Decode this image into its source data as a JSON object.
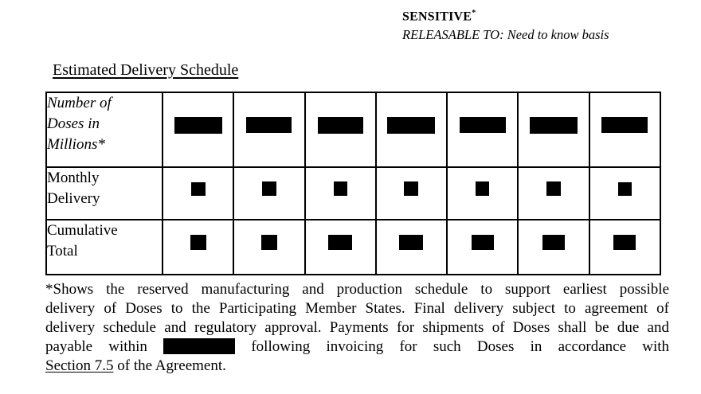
{
  "header": {
    "classification": "SENSITIVE",
    "classification_superscript": "*",
    "releasable_line": "RELEASABLE TO: Need to know basis"
  },
  "title": "Estimated Delivery Schedule",
  "table": {
    "columns": 7,
    "rows": [
      {
        "label": "Number of\nDoses in\nMillions*",
        "italic": true,
        "redaction_bars": [
          [
            60,
            21
          ],
          [
            57,
            20
          ],
          [
            57,
            21
          ],
          [
            60,
            21
          ],
          [
            58,
            20
          ],
          [
            60,
            21
          ],
          [
            58,
            20
          ]
        ]
      },
      {
        "label": "Monthly\nDelivery",
        "italic": false,
        "redaction_bars": [
          [
            18,
            17
          ],
          [
            18,
            18
          ],
          [
            17,
            18
          ],
          [
            18,
            18
          ],
          [
            17,
            18
          ],
          [
            18,
            18
          ],
          [
            17,
            17
          ]
        ]
      },
      {
        "label": "Cumulative\nTotal",
        "italic": false,
        "redaction_bars": [
          [
            20,
            19
          ],
          [
            20,
            19
          ],
          [
            30,
            19
          ],
          [
            30,
            19
          ],
          [
            28,
            19
          ],
          [
            28,
            19
          ],
          [
            28,
            19
          ]
        ]
      }
    ]
  },
  "footnote": {
    "lines": [
      "*Shows the reserved manufacturing and production schedule to support earliest possible",
      "delivery of Doses to the Participating Member States. Final delivery subject to agreement of",
      "delivery schedule and regulatory approval. Payments for shipments of Doses shall be due and"
    ],
    "redacted_line": {
      "before": "payable within",
      "after": "following invoicing for such Doses in accordance with"
    },
    "redaction": {
      "width": 90,
      "height": 20
    },
    "last_line": {
      "section_reference": "Section 7.5",
      "rest": "of the Agreement."
    }
  },
  "colors": {
    "ink": "#000000",
    "paper": "#ffffff",
    "redaction": "#000000"
  }
}
